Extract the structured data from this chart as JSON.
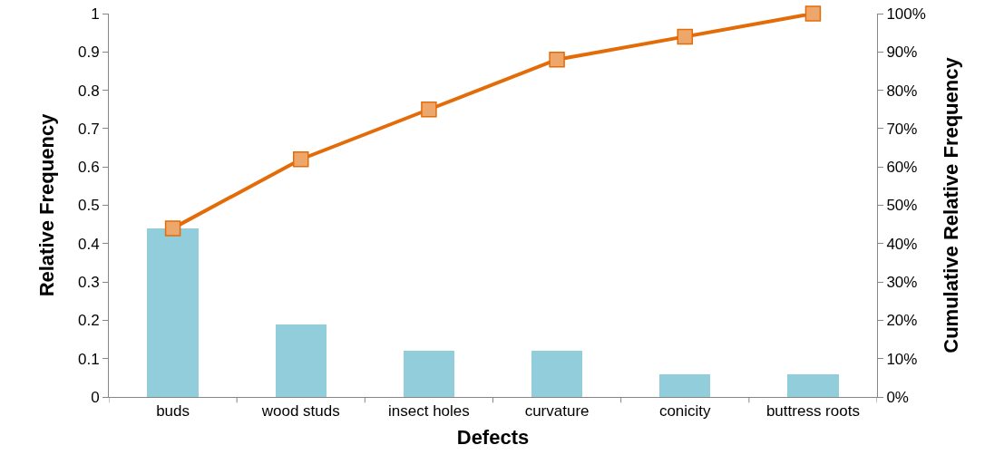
{
  "chart_data": {
    "type": "bar",
    "xlabel": "Defects",
    "ylabel": "Relative Frequency",
    "y2label": "Cumulative Relative Frequency",
    "categories": [
      "buds",
      "wood studs",
      "insect holes",
      "curvature",
      "conicity",
      "buttress roots"
    ],
    "series": [
      {
        "color": "#92cddc",
        "values": [
          0.44,
          0.19,
          0.12,
          0.12,
          0.06,
          0.06
        ]
      },
      {
        "type": "line",
        "axis": "y2",
        "color": "#e36c09",
        "marker": "square",
        "line_style": "solid",
        "values": [
          44,
          62,
          75,
          88,
          94,
          100
        ]
      }
    ],
    "ylim": [
      0,
      1
    ],
    "yticks": [
      0,
      0.1,
      0.2,
      0.3,
      0.4,
      0.5,
      0.6,
      0.7,
      0.8,
      0.9,
      1
    ],
    "y2lim": [
      0,
      100
    ],
    "y2ticks": [
      {
        "value": 0,
        "label": "0%"
      },
      {
        "value": 10,
        "label": "10%"
      },
      {
        "value": 20,
        "label": "20%"
      },
      {
        "value": 30,
        "label": "30%"
      },
      {
        "value": 40,
        "label": "40%"
      },
      {
        "value": 50,
        "label": "50%"
      },
      {
        "value": 60,
        "label": "60%"
      },
      {
        "value": 70,
        "label": "70%"
      },
      {
        "value": 80,
        "label": "80%"
      },
      {
        "value": 90,
        "label": "90%"
      },
      {
        "value": 100,
        "label": "100%"
      }
    ],
    "grid": false,
    "legend": false
  }
}
